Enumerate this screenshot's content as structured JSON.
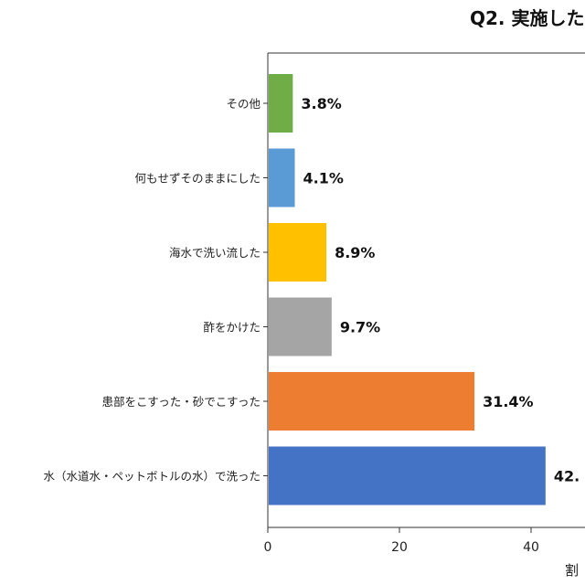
{
  "chart_data": {
    "type": "bar",
    "orientation": "horizontal",
    "title": "Q2. 実施した",
    "xlabel": "割",
    "ylabel": "",
    "xlim": [
      0,
      50
    ],
    "xticks": [
      0,
      20,
      40
    ],
    "xtick_labels": [
      "0",
      "20",
      "40"
    ],
    "grid": false,
    "categories": [
      "その他",
      "何もせずそのままにした",
      "海水で洗い流した",
      "酢をかけた",
      "患部をこすった・砂でこすった",
      "水（水道水・ペットボトルの水）で洗った"
    ],
    "values": [
      3.8,
      4.1,
      8.9,
      9.7,
      31.4,
      42.2
    ],
    "value_labels": [
      "3.8%",
      "4.1%",
      "8.9%",
      "9.7%",
      "31.4%",
      "42."
    ],
    "colors": [
      "#70ad47",
      "#5b9bd5",
      "#ffc000",
      "#a5a5a5",
      "#ed7d31",
      "#4472c4"
    ]
  }
}
